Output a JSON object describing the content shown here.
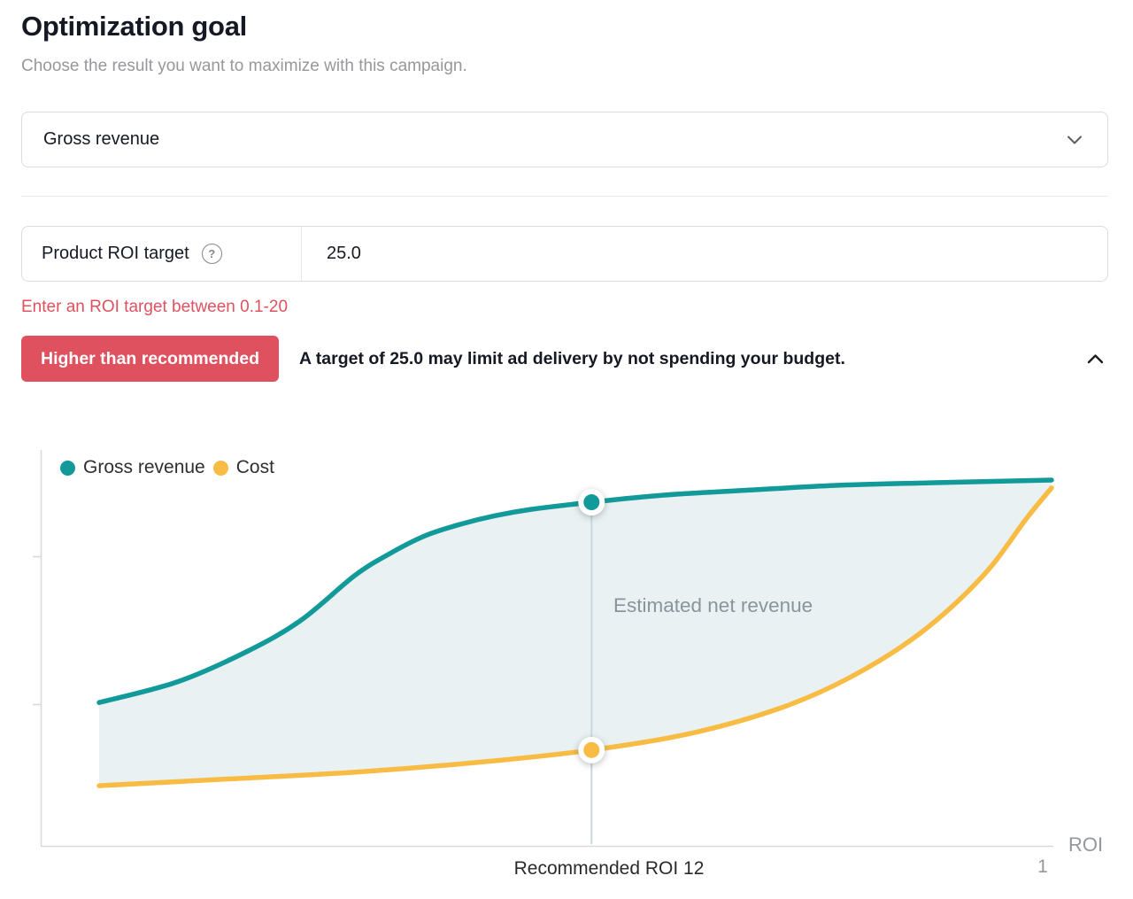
{
  "header": {
    "title": "Optimization goal",
    "subtitle": "Choose the result you want to maximize with this campaign."
  },
  "goal_dropdown": {
    "value": "Gross revenue"
  },
  "roi_field": {
    "label": "Product ROI target",
    "help_icon": "question-mark-circle",
    "value": "25.0",
    "error_message": "Enter an ROI target between 0.1-20"
  },
  "warning_banner": {
    "badge_label": "Higher than recommended",
    "message": "A target of 25.0 may limit ad delivery by not spending your budget.",
    "badge_color": "#e0515f",
    "collapse_icon": "chevron-up"
  },
  "chart_data": {
    "type": "area",
    "title": "",
    "xlabel": "ROI",
    "ylabel": "",
    "x_axis": {
      "note": "ROI decreases toward the right; only the final tick is labeled",
      "end_tick_label": "1"
    },
    "y_axis": {
      "unlabeled_tick_count": 2
    },
    "legend_position": "top-left",
    "legend": [
      {
        "name": "Gross revenue",
        "color": "#12999a"
      },
      {
        "name": "Cost",
        "color": "#f8bc45"
      }
    ],
    "area_label": "Estimated net revenue",
    "fill_color": "#e9f1f2",
    "marker": {
      "label": "Recommended ROI 12",
      "x_fraction": 0.517,
      "gross_revenue_value": 86.8,
      "cost_value": 24.2,
      "line_color": "#cbd6df"
    },
    "y_units": "relative value 0-100 (axis unlabeled)",
    "series": [
      {
        "name": "Gross revenue",
        "color": "#12999a",
        "points": [
          [
            0.0,
            36.2
          ],
          [
            0.082,
            41.4
          ],
          [
            0.156,
            49.2
          ],
          [
            0.212,
            57.0
          ],
          [
            0.268,
            68.2
          ],
          [
            0.305,
            73.8
          ],
          [
            0.342,
            78.3
          ],
          [
            0.379,
            81.2
          ],
          [
            0.416,
            83.4
          ],
          [
            0.454,
            85.0
          ],
          [
            0.517,
            86.8
          ],
          [
            0.593,
            88.6
          ],
          [
            0.686,
            89.9
          ],
          [
            0.779,
            91.1
          ],
          [
            0.872,
            91.7
          ],
          [
            1.0,
            92.4
          ]
        ]
      },
      {
        "name": "Cost",
        "color": "#f8bc45",
        "points": [
          [
            0.0,
            15.2
          ],
          [
            0.128,
            16.8
          ],
          [
            0.268,
            18.6
          ],
          [
            0.407,
            21.3
          ],
          [
            0.517,
            24.2
          ],
          [
            0.621,
            28.4
          ],
          [
            0.714,
            34.7
          ],
          [
            0.788,
            42.5
          ],
          [
            0.862,
            53.7
          ],
          [
            0.928,
            68.2
          ],
          [
            0.974,
            82.8
          ],
          [
            1.0,
            90.4
          ]
        ]
      }
    ]
  },
  "colors": {
    "accent_teal": "#12999a",
    "accent_yellow": "#f8bc45",
    "error_red": "#e0515f",
    "axis_gray": "#d9d9db",
    "muted_text": "#97979c"
  }
}
